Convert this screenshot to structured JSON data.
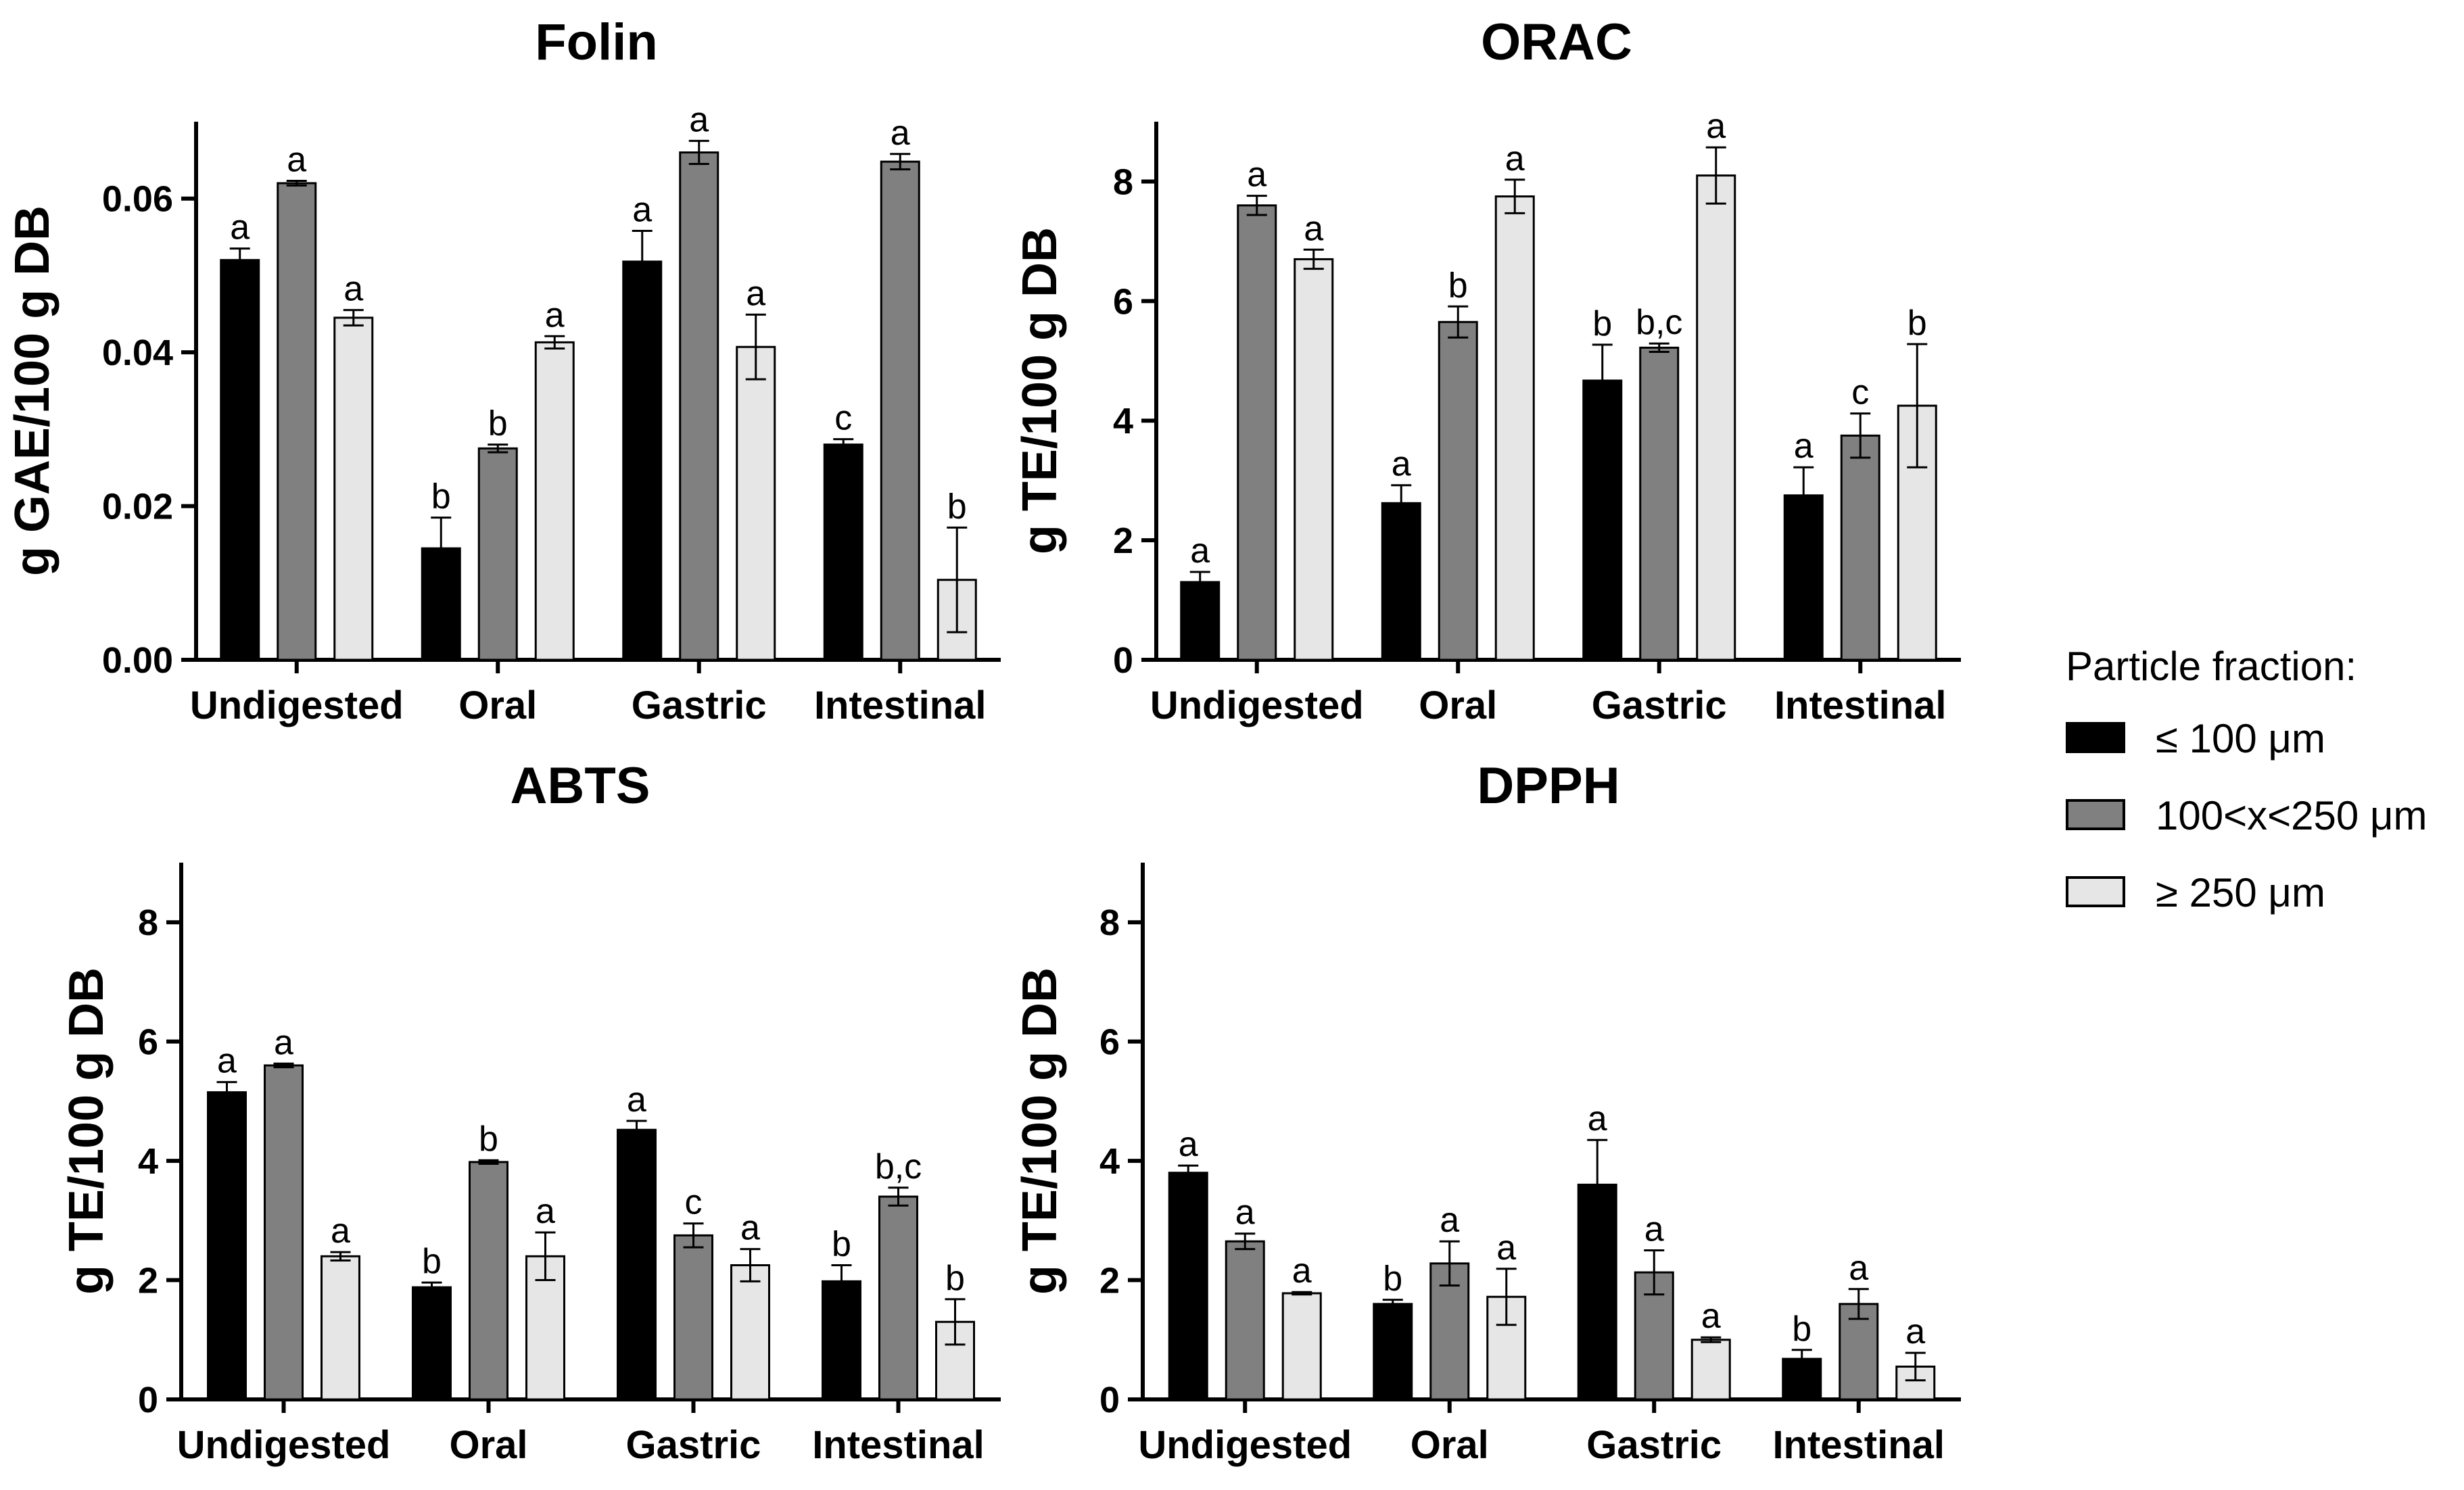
{
  "legend": {
    "title": "Particle fraction:",
    "items": [
      {
        "label": "≤ 100 μm",
        "color": "#000000"
      },
      {
        "label": "100<x<250 μm",
        "color": "#808080"
      },
      {
        "label": "≥ 250 μm",
        "color": "#e6e6e6"
      }
    ]
  },
  "chart_data": [
    {
      "type": "bar",
      "title": "Folin",
      "ylabel": "g GAE/100 g DB",
      "xlabel": "",
      "ylim": [
        0,
        0.07
      ],
      "yticks": [
        0,
        0.02,
        0.04,
        0.06
      ],
      "ytick_labels": [
        "0.00",
        "0.02",
        "0.04",
        "0.06"
      ],
      "categories": [
        "Undigested",
        "Oral",
        "Gastric",
        "Intestinal"
      ],
      "series": [
        {
          "name": "≤ 100 μm",
          "values": [
            0.052,
            0.0145,
            0.0518,
            0.028
          ],
          "errors": [
            0.0015,
            0.004,
            0.004,
            0.0007
          ],
          "letters": [
            "a",
            "b",
            "a",
            "c"
          ]
        },
        {
          "name": "100<x<250 μm",
          "values": [
            0.062,
            0.0275,
            0.066,
            0.0648
          ],
          "errors": [
            0.0003,
            0.0005,
            0.0015,
            0.001
          ],
          "letters": [
            "a",
            "b",
            "a",
            "a"
          ]
        },
        {
          "name": "≥ 250 μm",
          "values": [
            0.0445,
            0.0413,
            0.0407,
            0.0104
          ],
          "errors": [
            0.001,
            0.0008,
            0.0042,
            0.0068
          ],
          "letters": [
            "a",
            "a",
            "a",
            "b"
          ]
        }
      ]
    },
    {
      "type": "bar",
      "title": "ORAC",
      "ylabel": "g TE/100 g DB",
      "xlabel": "",
      "ylim": [
        0,
        9
      ],
      "yticks": [
        0,
        2,
        4,
        6,
        8
      ],
      "ytick_labels": [
        "0",
        "2",
        "4",
        "6",
        "8"
      ],
      "categories": [
        "Undigested",
        "Oral",
        "Gastric",
        "Intestinal"
      ],
      "series": [
        {
          "name": "≤ 100 μm",
          "values": [
            1.3,
            2.62,
            4.67,
            2.75
          ],
          "errors": [
            0.17,
            0.3,
            0.6,
            0.47
          ],
          "letters": [
            "a",
            "a",
            "b",
            "a"
          ]
        },
        {
          "name": "100<x<250 μm",
          "values": [
            7.6,
            5.65,
            5.22,
            3.75
          ],
          "errors": [
            0.16,
            0.26,
            0.07,
            0.37
          ],
          "letters": [
            "a",
            "b",
            "b,c",
            "c"
          ]
        },
        {
          "name": "≥ 250 μm",
          "values": [
            6.7,
            7.75,
            8.1,
            4.25
          ],
          "errors": [
            0.16,
            0.28,
            0.47,
            1.03
          ],
          "letters": [
            "a",
            "a",
            "a",
            "b"
          ]
        }
      ]
    },
    {
      "type": "bar",
      "title": "ABTS",
      "ylabel": "g TE/100 g DB",
      "xlabel": "",
      "ylim": [
        0,
        9
      ],
      "yticks": [
        0,
        2,
        4,
        6,
        8
      ],
      "ytick_labels": [
        "0",
        "2",
        "4",
        "6",
        "8"
      ],
      "categories": [
        "Undigested",
        "Oral",
        "Gastric",
        "Intestinal"
      ],
      "series": [
        {
          "name": "≤ 100 μm",
          "values": [
            5.15,
            1.88,
            4.52,
            1.98
          ],
          "errors": [
            0.17,
            0.08,
            0.15,
            0.27
          ],
          "letters": [
            "a",
            "b",
            "a",
            "b"
          ]
        },
        {
          "name": "100<x<250 μm",
          "values": [
            5.6,
            3.98,
            2.75,
            3.4
          ],
          "errors": [
            0.03,
            0.03,
            0.2,
            0.15
          ],
          "letters": [
            "a",
            "b",
            "c",
            "b,c"
          ]
        },
        {
          "name": "≥ 250 μm",
          "values": [
            2.4,
            2.4,
            2.25,
            1.3
          ],
          "errors": [
            0.07,
            0.4,
            0.27,
            0.38
          ],
          "letters": [
            "a",
            "a",
            "a",
            "b"
          ]
        }
      ]
    },
    {
      "type": "bar",
      "title": "DPPH",
      "ylabel": "g TE/100 g DB",
      "xlabel": "",
      "ylim": [
        0,
        9
      ],
      "yticks": [
        0,
        2,
        4,
        6,
        8
      ],
      "ytick_labels": [
        "0",
        "2",
        "4",
        "6",
        "8"
      ],
      "categories": [
        "Undigested",
        "Oral",
        "Gastric",
        "Intestinal"
      ],
      "series": [
        {
          "name": "≤ 100 μm",
          "values": [
            3.8,
            1.6,
            3.6,
            0.68
          ],
          "errors": [
            0.12,
            0.07,
            0.75,
            0.15
          ],
          "letters": [
            "a",
            "b",
            "a",
            "b"
          ]
        },
        {
          "name": "100<x<250 μm",
          "values": [
            2.65,
            2.28,
            2.13,
            1.6
          ],
          "errors": [
            0.13,
            0.37,
            0.37,
            0.25
          ],
          "letters": [
            "a",
            "a",
            "a",
            "a"
          ]
        },
        {
          "name": "≥ 250 μm",
          "values": [
            1.78,
            1.72,
            1.0,
            0.55
          ],
          "errors": [
            0.02,
            0.47,
            0.04,
            0.23
          ],
          "letters": [
            "a",
            "a",
            "a",
            "a"
          ]
        }
      ]
    }
  ]
}
